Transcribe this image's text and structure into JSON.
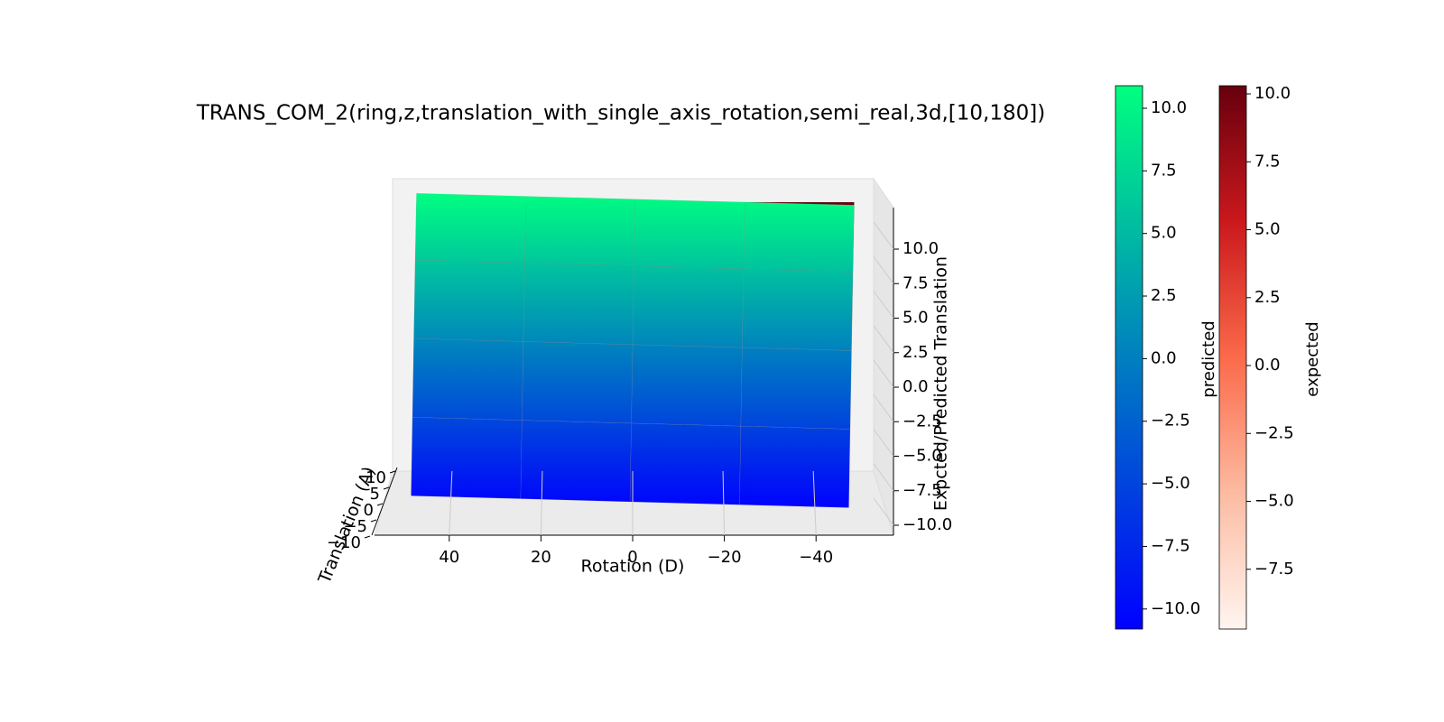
{
  "chart_data": {
    "type": "surface3d",
    "title": "TRANS_COM_2(ring,z,translation_with_single_axis_rotation,semi_real,3d,[10,180])",
    "xlabel": "Rotation (D)",
    "ylabel": "Translation (A)",
    "zlabel": "Expcted/Predicted Translation",
    "x": [
      -50,
      -25,
      0,
      25,
      50
    ],
    "y": [
      -10,
      -5,
      0,
      5,
      10
    ],
    "xticks": [
      {
        "value": 40,
        "label": "40"
      },
      {
        "value": 20,
        "label": "20"
      },
      {
        "value": 0,
        "label": "0"
      },
      {
        "value": -20,
        "label": "−20"
      },
      {
        "value": -40,
        "label": "−40"
      }
    ],
    "yticks": [
      {
        "value": 10,
        "label": "10"
      },
      {
        "value": 5,
        "label": "5"
      },
      {
        "value": 0,
        "label": "0"
      },
      {
        "value": -5,
        "label": "−5"
      },
      {
        "value": -10,
        "label": "−10"
      }
    ],
    "zticks": [
      {
        "value": 10,
        "label": "10.0"
      },
      {
        "value": 7.5,
        "label": "7.5"
      },
      {
        "value": 5,
        "label": "5.0"
      },
      {
        "value": 2.5,
        "label": "2.5"
      },
      {
        "value": 0,
        "label": "0.0"
      },
      {
        "value": -2.5,
        "label": "−2.5"
      },
      {
        "value": -5,
        "label": "−5.0"
      },
      {
        "value": -7.5,
        "label": "−7.5"
      },
      {
        "value": -10,
        "label": "−10.0"
      }
    ],
    "series": [
      {
        "name": "expected",
        "colormap": [
          "#fff5f0",
          "#fcbba1",
          "#fb6a4a",
          "#cb181d",
          "#67000d"
        ],
        "clim": [
          -9.7,
          10.3
        ],
        "cticks": [
          {
            "value": 10,
            "label": "10.0"
          },
          {
            "value": 7.5,
            "label": "7.5"
          },
          {
            "value": 5,
            "label": "5.0"
          },
          {
            "value": 2.5,
            "label": "2.5"
          },
          {
            "value": 0,
            "label": "0.0"
          },
          {
            "value": -2.5,
            "label": "−2.5"
          },
          {
            "value": -5,
            "label": "−5.0"
          },
          {
            "value": -7.5,
            "label": "−7.5"
          }
        ],
        "z": [
          [
            -9.7,
            -9.7,
            -9.7,
            -9.7,
            -9.7
          ],
          [
            -4.7,
            -4.7,
            -4.7,
            -4.7,
            -4.7
          ],
          [
            0.3,
            0.3,
            0.3,
            0.3,
            0.3
          ],
          [
            5.3,
            5.3,
            5.3,
            5.3,
            5.3
          ],
          [
            10.3,
            10.3,
            10.3,
            10.3,
            10.3
          ]
        ]
      },
      {
        "name": "predicted",
        "colormap": [
          "#0000ff",
          "#00ff80"
        ],
        "clim": [
          -10.8,
          10.9
        ],
        "cticks": [
          {
            "value": 10,
            "label": "10.0"
          },
          {
            "value": 7.5,
            "label": "7.5"
          },
          {
            "value": 5,
            "label": "5.0"
          },
          {
            "value": 2.5,
            "label": "2.5"
          },
          {
            "value": 0,
            "label": "0.0"
          },
          {
            "value": -2.5,
            "label": "−2.5"
          },
          {
            "value": -5,
            "label": "−5.0"
          },
          {
            "value": -7.5,
            "label": "−7.5"
          },
          {
            "value": -10,
            "label": "−10.0"
          }
        ],
        "z": [
          [
            -10.7,
            -10.5,
            -10.3,
            -10.1,
            -9.9
          ],
          [
            -5.3,
            -5.1,
            -4.9,
            -4.7,
            -4.5
          ],
          [
            0.1,
            0.3,
            0.5,
            0.7,
            0.9
          ],
          [
            5.5,
            5.7,
            5.9,
            6.1,
            6.3
          ],
          [
            10.1,
            10.3,
            10.5,
            10.7,
            10.9
          ]
        ]
      }
    ]
  }
}
